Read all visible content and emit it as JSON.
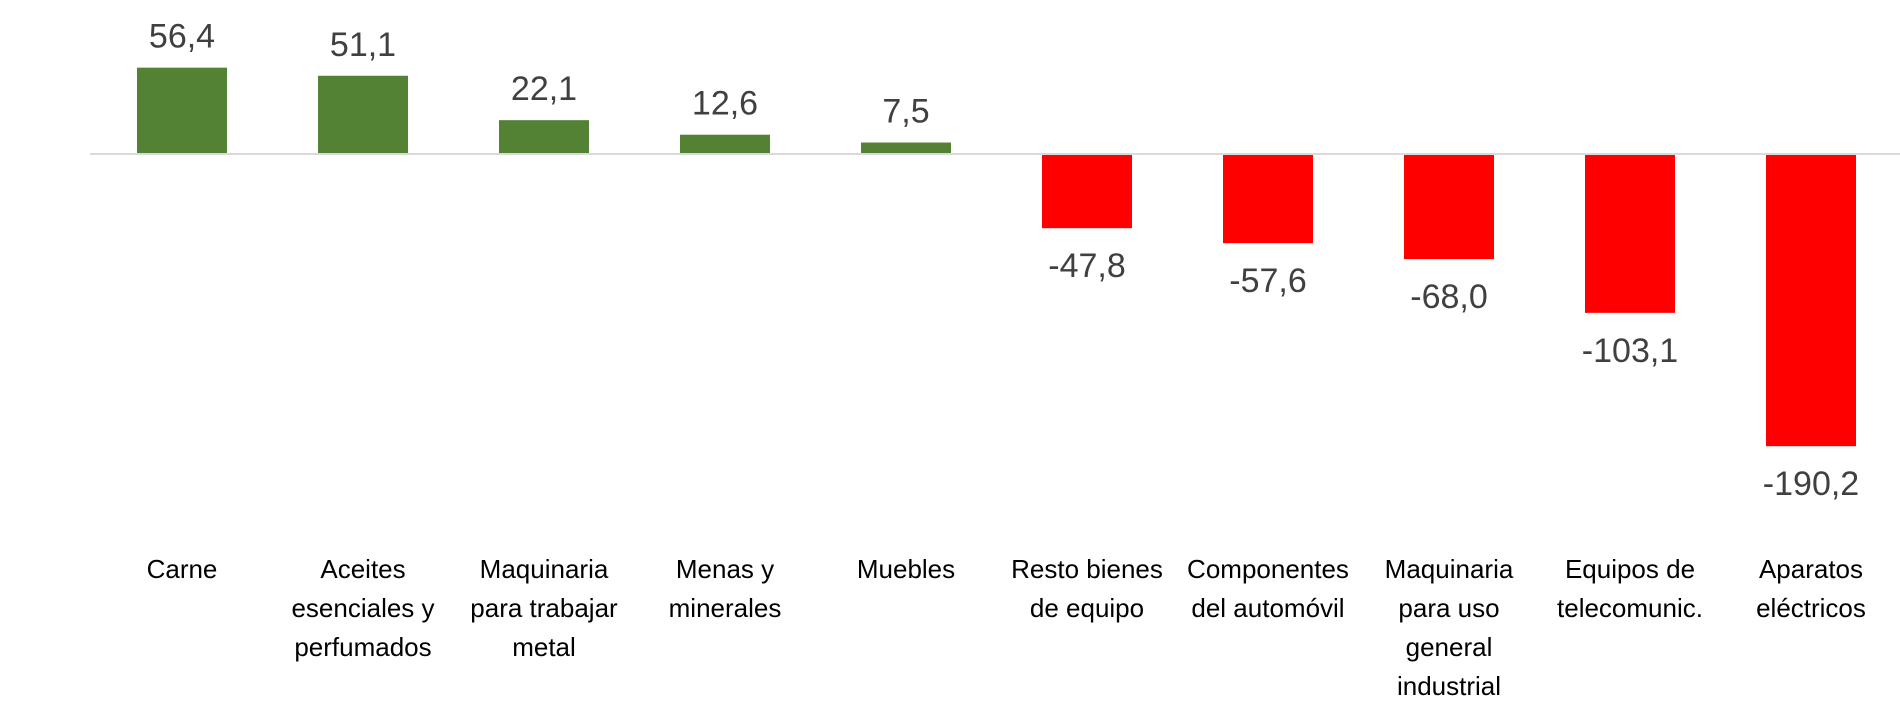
{
  "chart_data": {
    "type": "bar",
    "categories": [
      [
        "Carne"
      ],
      [
        "Aceites",
        "esenciales y",
        "perfumados"
      ],
      [
        "Maquinaria",
        "para trabajar",
        "metal"
      ],
      [
        "Menas y",
        "minerales"
      ],
      [
        "Muebles"
      ],
      [
        "Resto bienes",
        "de equipo"
      ],
      [
        "Componentes",
        "del automóvil"
      ],
      [
        "Maquinaria",
        "para uso",
        "general",
        "industrial"
      ],
      [
        "Equipos de",
        "telecomunic."
      ],
      [
        "Aparatos",
        "eléctricos"
      ]
    ],
    "values": [
      56.4,
      51.1,
      22.1,
      12.6,
      7.5,
      -47.8,
      -57.6,
      -68.0,
      -103.1,
      -190.2
    ],
    "value_labels": [
      "56,4",
      "51,1",
      "22,1",
      "12,6",
      "7,5",
      "-47,8",
      "-57,6",
      "-68,0",
      "-103,1",
      "-190,2"
    ],
    "title": "",
    "xlabel": "",
    "ylabel": "",
    "ylim": [
      -200,
      60
    ],
    "grid": false,
    "legend": "none",
    "colors": {
      "positive": "#548235",
      "negative": "#ff0000",
      "axis": "#d9d9d9"
    }
  }
}
